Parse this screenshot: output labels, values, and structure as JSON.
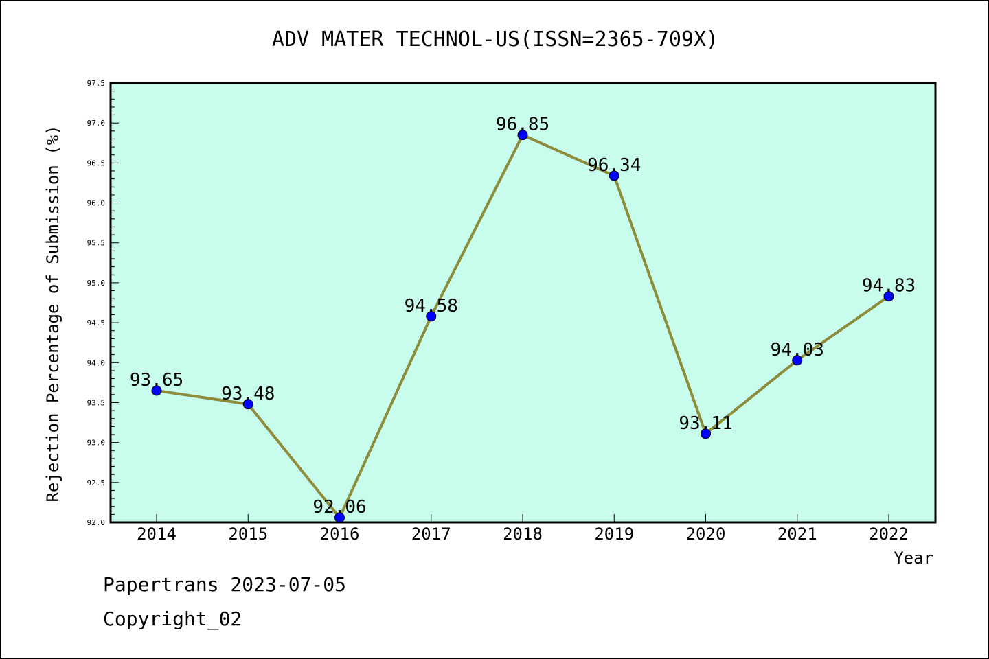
{
  "chart_data": {
    "type": "line",
    "title": "ADV MATER TECHNOL-US(ISSN=2365-709X)",
    "xlabel": "Year",
    "ylabel": "Rejection Percentage of Submission (%)",
    "x": [
      "2014",
      "2015",
      "2016",
      "2017",
      "2018",
      "2019",
      "2020",
      "2021",
      "2022"
    ],
    "series": [
      {
        "values": [
          93.65,
          93.48,
          92.06,
          94.58,
          96.85,
          96.34,
          93.11,
          94.03,
          94.83
        ],
        "labels": [
          "93.65",
          "93.48",
          "92.06",
          "94.58",
          "96.85",
          "96.34",
          "93.11",
          "94.03",
          "94.83"
        ]
      }
    ],
    "ylim": [
      92.0,
      97.5
    ],
    "yticks": [
      "92.0",
      "92.5",
      "93.0",
      "93.5",
      "94.0",
      "94.5",
      "95.0",
      "95.5",
      "96.0",
      "96.5",
      "97.0",
      "97.5"
    ],
    "grid": false,
    "legend": "none",
    "colors": {
      "plot_background": "#c8fcec",
      "line": "#8c8c3a",
      "marker": "#0000ff"
    }
  },
  "footer": {
    "line1": "Papertrans 2023-07-05",
    "line2": "Copyright_02"
  }
}
